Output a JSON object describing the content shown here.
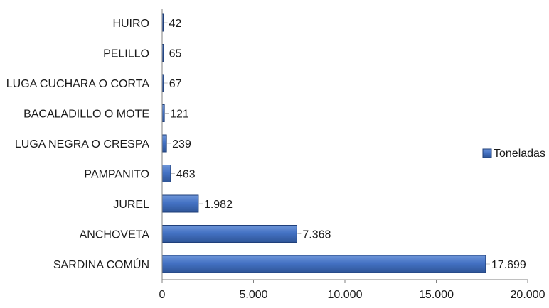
{
  "chart_data": {
    "type": "bar",
    "orientation": "horizontal",
    "title": "",
    "xlabel": "",
    "ylabel": "",
    "categories": [
      "HUIRO",
      "PELILLO",
      "LUGA CUCHARA O CORTA",
      "BACALADILLO O MOTE",
      "LUGA NEGRA O CRESPA",
      "PAMPANITO",
      "JUREL",
      "ANCHOVETA",
      "SARDINA COMÚN"
    ],
    "series": [
      {
        "name": "Toneladas",
        "values": [
          42,
          65,
          67,
          121,
          239,
          463,
          1982,
          7368,
          17699
        ],
        "labels": [
          "42",
          "65",
          "67",
          "121",
          "239",
          "463",
          "1.982",
          "7.368",
          "17.699"
        ],
        "color": "#4472C4"
      }
    ],
    "xlim": [
      0,
      20000
    ],
    "xticks": [
      0,
      5000,
      10000,
      15000,
      20000
    ],
    "xtick_labels": [
      "0",
      "5.000",
      "10.000",
      "15.000",
      "20.000"
    ],
    "grid": false,
    "legend_position": "right"
  }
}
